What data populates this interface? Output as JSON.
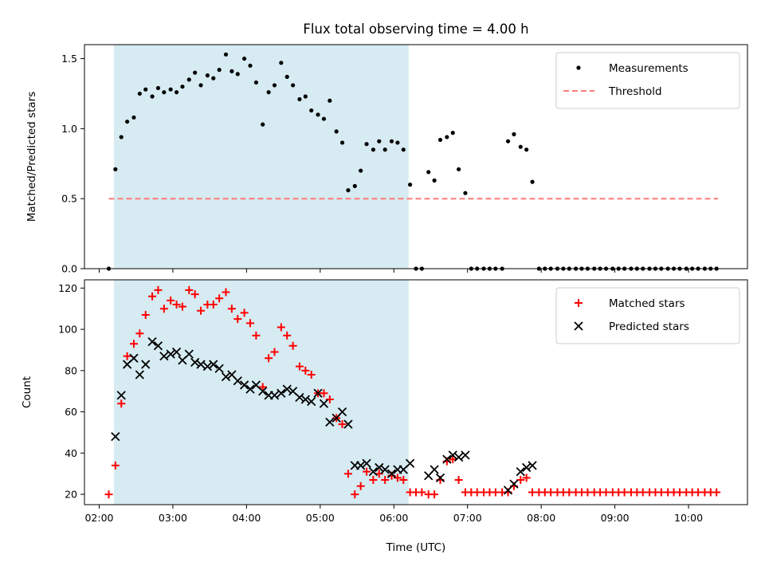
{
  "chart_data": [
    {
      "type": "scatter",
      "title": "Flux total observing time = 4.00 h",
      "xlabel": "",
      "ylabel": "Matched/Predicted stars",
      "xlim": [
        1.8,
        10.8
      ],
      "ylim": [
        0,
        1.6
      ],
      "yticks": [
        0.0,
        0.5,
        1.0,
        1.5
      ],
      "ytick_labels": [
        "0.0",
        "0.5",
        "1.0",
        "1.5"
      ],
      "xticks": [
        2,
        3,
        4,
        5,
        6,
        7,
        8,
        9,
        10
      ],
      "shaded_span": [
        2.2,
        6.2
      ],
      "legend_position": "top-right",
      "threshold": {
        "name": "Threshold",
        "value": 0.5,
        "x_range": [
          2.13,
          10.4
        ],
        "color": "#ff7b7b"
      },
      "series": [
        {
          "name": "Measurements",
          "color": "#000000",
          "marker": "dot",
          "points": [
            [
              2.13,
              0.0
            ],
            [
              2.22,
              0.71
            ],
            [
              2.3,
              0.94
            ],
            [
              2.38,
              1.05
            ],
            [
              2.47,
              1.08
            ],
            [
              2.55,
              1.25
            ],
            [
              2.63,
              1.28
            ],
            [
              2.72,
              1.23
            ],
            [
              2.8,
              1.29
            ],
            [
              2.88,
              1.26
            ],
            [
              2.97,
              1.28
            ],
            [
              3.05,
              1.26
            ],
            [
              3.13,
              1.3
            ],
            [
              3.22,
              1.35
            ],
            [
              3.3,
              1.4
            ],
            [
              3.38,
              1.31
            ],
            [
              3.47,
              1.38
            ],
            [
              3.55,
              1.36
            ],
            [
              3.63,
              1.42
            ],
            [
              3.72,
              1.53
            ],
            [
              3.8,
              1.41
            ],
            [
              3.88,
              1.39
            ],
            [
              3.97,
              1.5
            ],
            [
              4.05,
              1.45
            ],
            [
              4.13,
              1.33
            ],
            [
              4.22,
              1.03
            ],
            [
              4.3,
              1.26
            ],
            [
              4.38,
              1.31
            ],
            [
              4.47,
              1.47
            ],
            [
              4.55,
              1.37
            ],
            [
              4.63,
              1.31
            ],
            [
              4.72,
              1.21
            ],
            [
              4.8,
              1.23
            ],
            [
              4.88,
              1.13
            ],
            [
              4.97,
              1.1
            ],
            [
              5.05,
              1.07
            ],
            [
              5.13,
              1.2
            ],
            [
              5.22,
              0.98
            ],
            [
              5.3,
              0.9
            ],
            [
              5.38,
              0.56
            ],
            [
              5.47,
              0.59
            ],
            [
              5.55,
              0.7
            ],
            [
              5.63,
              0.89
            ],
            [
              5.72,
              0.85
            ],
            [
              5.8,
              0.91
            ],
            [
              5.88,
              0.85
            ],
            [
              5.97,
              0.91
            ],
            [
              6.05,
              0.9
            ],
            [
              6.13,
              0.85
            ],
            [
              6.22,
              0.6
            ],
            [
              6.3,
              0.0
            ],
            [
              6.38,
              0.0
            ],
            [
              6.47,
              0.69
            ],
            [
              6.55,
              0.63
            ],
            [
              6.63,
              0.92
            ],
            [
              6.72,
              0.94
            ],
            [
              6.8,
              0.97
            ],
            [
              6.88,
              0.71
            ],
            [
              6.97,
              0.54
            ],
            [
              7.05,
              0.0
            ],
            [
              7.13,
              0.0
            ],
            [
              7.22,
              0.0
            ],
            [
              7.3,
              0.0
            ],
            [
              7.38,
              0.0
            ],
            [
              7.47,
              0.0
            ],
            [
              7.55,
              0.91
            ],
            [
              7.63,
              0.96
            ],
            [
              7.72,
              0.87
            ],
            [
              7.8,
              0.85
            ],
            [
              7.88,
              0.62
            ],
            [
              7.97,
              0.0
            ],
            [
              8.05,
              0.0
            ],
            [
              8.13,
              0.0
            ],
            [
              8.22,
              0.0
            ],
            [
              8.3,
              0.0
            ],
            [
              8.38,
              0.0
            ],
            [
              8.47,
              0.0
            ],
            [
              8.55,
              0.0
            ],
            [
              8.63,
              0.0
            ],
            [
              8.72,
              0.0
            ],
            [
              8.8,
              0.0
            ],
            [
              8.88,
              0.0
            ],
            [
              8.97,
              0.0
            ],
            [
              9.05,
              0.0
            ],
            [
              9.13,
              0.0
            ],
            [
              9.22,
              0.0
            ],
            [
              9.3,
              0.0
            ],
            [
              9.38,
              0.0
            ],
            [
              9.47,
              0.0
            ],
            [
              9.55,
              0.0
            ],
            [
              9.63,
              0.0
            ],
            [
              9.72,
              0.0
            ],
            [
              9.8,
              0.0
            ],
            [
              9.88,
              0.0
            ],
            [
              9.97,
              0.0
            ],
            [
              10.05,
              0.0
            ],
            [
              10.13,
              0.0
            ],
            [
              10.22,
              0.0
            ],
            [
              10.3,
              0.0
            ],
            [
              10.38,
              0.0
            ]
          ]
        }
      ]
    },
    {
      "type": "scatter",
      "title": "",
      "xlabel": "Time (UTC)",
      "ylabel": "Count",
      "xlim": [
        1.8,
        10.8
      ],
      "ylim": [
        15,
        124
      ],
      "yticks": [
        20,
        40,
        60,
        80,
        100,
        120
      ],
      "ytick_labels": [
        "20",
        "40",
        "60",
        "80",
        "100",
        "120"
      ],
      "xticks": [
        2,
        3,
        4,
        5,
        6,
        7,
        8,
        9,
        10
      ],
      "xtick_labels": [
        "02:00",
        "03:00",
        "04:00",
        "05:00",
        "06:00",
        "07:00",
        "08:00",
        "09:00",
        "10:00"
      ],
      "shaded_span": [
        2.2,
        6.2
      ],
      "legend_position": "top-right",
      "series": [
        {
          "name": "Matched stars",
          "color": "#ff0000",
          "marker": "plus",
          "points": [
            [
              2.13,
              20
            ],
            [
              2.22,
              34
            ],
            [
              2.3,
              64
            ],
            [
              2.38,
              87
            ],
            [
              2.47,
              93
            ],
            [
              2.55,
              98
            ],
            [
              2.63,
              107
            ],
            [
              2.72,
              116
            ],
            [
              2.8,
              119
            ],
            [
              2.88,
              110
            ],
            [
              2.97,
              114
            ],
            [
              3.05,
              112
            ],
            [
              3.13,
              111
            ],
            [
              3.22,
              119
            ],
            [
              3.3,
              117
            ],
            [
              3.38,
              109
            ],
            [
              3.47,
              112
            ],
            [
              3.55,
              112
            ],
            [
              3.63,
              115
            ],
            [
              3.72,
              118
            ],
            [
              3.8,
              110
            ],
            [
              3.88,
              105
            ],
            [
              3.97,
              108
            ],
            [
              4.05,
              103
            ],
            [
              4.13,
              97
            ],
            [
              4.22,
              72
            ],
            [
              4.3,
              86
            ],
            [
              4.38,
              89
            ],
            [
              4.47,
              101
            ],
            [
              4.55,
              97
            ],
            [
              4.63,
              92
            ],
            [
              4.72,
              82
            ],
            [
              4.8,
              80
            ],
            [
              4.88,
              78
            ],
            [
              4.97,
              69
            ],
            [
              5.05,
              69
            ],
            [
              5.13,
              66
            ],
            [
              5.22,
              57
            ],
            [
              5.3,
              54
            ],
            [
              5.38,
              30
            ],
            [
              5.47,
              20
            ],
            [
              5.55,
              24
            ],
            [
              5.63,
              31
            ],
            [
              5.72,
              27
            ],
            [
              5.8,
              30
            ],
            [
              5.88,
              27
            ],
            [
              5.97,
              29
            ],
            [
              6.05,
              28
            ],
            [
              6.13,
              27
            ],
            [
              6.22,
              21
            ],
            [
              6.3,
              21
            ],
            [
              6.38,
              21
            ],
            [
              6.47,
              20
            ],
            [
              6.55,
              20
            ],
            [
              6.63,
              27
            ],
            [
              6.72,
              36
            ],
            [
              6.8,
              37
            ],
            [
              6.88,
              27
            ],
            [
              6.97,
              21
            ],
            [
              7.05,
              21
            ],
            [
              7.13,
              21
            ],
            [
              7.22,
              21
            ],
            [
              7.3,
              21
            ],
            [
              7.38,
              21
            ],
            [
              7.47,
              21
            ],
            [
              7.55,
              21
            ],
            [
              7.63,
              24
            ],
            [
              7.72,
              27
            ],
            [
              7.8,
              28
            ],
            [
              7.88,
              21
            ],
            [
              7.97,
              21
            ],
            [
              8.05,
              21
            ],
            [
              8.13,
              21
            ],
            [
              8.22,
              21
            ],
            [
              8.3,
              21
            ],
            [
              8.38,
              21
            ],
            [
              8.47,
              21
            ],
            [
              8.55,
              21
            ],
            [
              8.63,
              21
            ],
            [
              8.72,
              21
            ],
            [
              8.8,
              21
            ],
            [
              8.88,
              21
            ],
            [
              8.97,
              21
            ],
            [
              9.05,
              21
            ],
            [
              9.13,
              21
            ],
            [
              9.22,
              21
            ],
            [
              9.3,
              21
            ],
            [
              9.38,
              21
            ],
            [
              9.47,
              21
            ],
            [
              9.55,
              21
            ],
            [
              9.63,
              21
            ],
            [
              9.72,
              21
            ],
            [
              9.8,
              21
            ],
            [
              9.88,
              21
            ],
            [
              9.97,
              21
            ],
            [
              10.05,
              21
            ],
            [
              10.13,
              21
            ],
            [
              10.22,
              21
            ],
            [
              10.3,
              21
            ],
            [
              10.38,
              21
            ]
          ]
        },
        {
          "name": "Predicted stars",
          "color": "#000000",
          "marker": "x",
          "points": [
            [
              2.22,
              48
            ],
            [
              2.3,
              68
            ],
            [
              2.38,
              83
            ],
            [
              2.47,
              86
            ],
            [
              2.55,
              78
            ],
            [
              2.63,
              83
            ],
            [
              2.72,
              94
            ],
            [
              2.8,
              92
            ],
            [
              2.88,
              87
            ],
            [
              2.97,
              88
            ],
            [
              3.05,
              89
            ],
            [
              3.13,
              85
            ],
            [
              3.22,
              88
            ],
            [
              3.3,
              84
            ],
            [
              3.38,
              83
            ],
            [
              3.47,
              82
            ],
            [
              3.55,
              83
            ],
            [
              3.63,
              81
            ],
            [
              3.72,
              77
            ],
            [
              3.8,
              78
            ],
            [
              3.88,
              75
            ],
            [
              3.97,
              73
            ],
            [
              4.05,
              71
            ],
            [
              4.13,
              73
            ],
            [
              4.22,
              70
            ],
            [
              4.3,
              68
            ],
            [
              4.38,
              68
            ],
            [
              4.47,
              69
            ],
            [
              4.55,
              71
            ],
            [
              4.63,
              70
            ],
            [
              4.72,
              67
            ],
            [
              4.8,
              66
            ],
            [
              4.88,
              65
            ],
            [
              4.97,
              69
            ],
            [
              5.05,
              64
            ],
            [
              5.13,
              55
            ],
            [
              5.22,
              57
            ],
            [
              5.3,
              60
            ],
            [
              5.38,
              54
            ],
            [
              5.47,
              34
            ],
            [
              5.55,
              34
            ],
            [
              5.63,
              35
            ],
            [
              5.72,
              31
            ],
            [
              5.8,
              33
            ],
            [
              5.88,
              32
            ],
            [
              5.97,
              30
            ],
            [
              6.05,
              32
            ],
            [
              6.13,
              32
            ],
            [
              6.22,
              35
            ],
            [
              6.47,
              29
            ],
            [
              6.55,
              32
            ],
            [
              6.63,
              28
            ],
            [
              6.72,
              37
            ],
            [
              6.8,
              39
            ],
            [
              6.88,
              38
            ],
            [
              6.97,
              39
            ],
            [
              7.55,
              22
            ],
            [
              7.63,
              25
            ],
            [
              7.72,
              31
            ],
            [
              7.8,
              33
            ],
            [
              7.88,
              34
            ]
          ]
        }
      ]
    }
  ]
}
